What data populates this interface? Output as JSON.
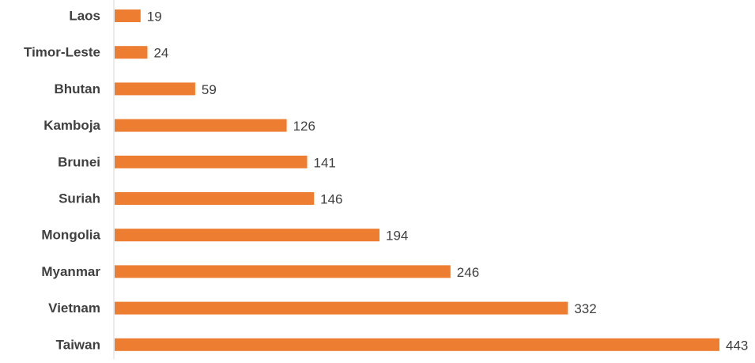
{
  "chart_data": {
    "type": "bar",
    "orientation": "horizontal",
    "categories": [
      "Laos",
      "Timor-Leste",
      "Bhutan",
      "Kamboja",
      "Brunei",
      "Suriah",
      "Mongolia",
      "Myanmar",
      "Vietnam",
      "Taiwan"
    ],
    "values": [
      19,
      24,
      59,
      126,
      141,
      146,
      194,
      246,
      332,
      443
    ],
    "title": "",
    "xlabel": "",
    "ylabel": "",
    "xlim": [
      0,
      443
    ],
    "grid": false,
    "legend": "none",
    "data_labels": true,
    "colors": {
      "bar": "#ED7D31",
      "text": "#404040",
      "axis": "#D9D9D9"
    }
  }
}
